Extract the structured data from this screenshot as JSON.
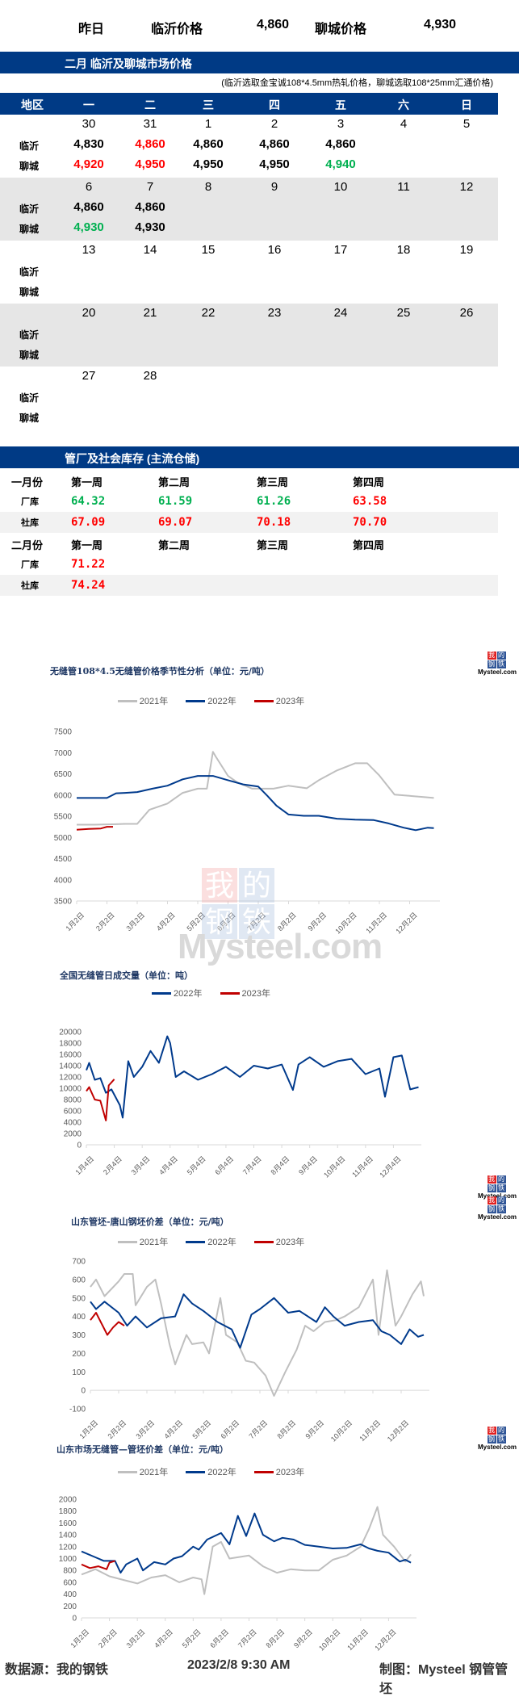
{
  "summary": {
    "label": "昨日",
    "linyi_label": "临沂价格",
    "linyi_price": "4,860",
    "liaocheng_label": "聊城价格",
    "liaocheng_price": "4,930"
  },
  "calendar": {
    "title": "二月 临沂及聊城市场价格",
    "note": "(临沂选取金宝诚108*4.5mm热轧价格，聊城选取108*25mm汇通价格)",
    "headers": [
      "地区",
      "一",
      "二",
      "三",
      "四",
      "五",
      "六",
      "日"
    ],
    "row_labels": {
      "linyi": "临沂",
      "liaocheng": "聊城"
    },
    "colors": {
      "up": "#ff0000",
      "down": "#00b050",
      "flat": "#000000"
    },
    "weeks": [
      {
        "days": [
          "30",
          "31",
          "1",
          "2",
          "3",
          "4",
          "5"
        ],
        "linyi": [
          {
            "v": "4,830",
            "c": "flat"
          },
          {
            "v": "4,860",
            "c": "up"
          },
          {
            "v": "4,860",
            "c": "flat"
          },
          {
            "v": "4,860",
            "c": "flat"
          },
          {
            "v": "4,860",
            "c": "flat"
          },
          null,
          null
        ],
        "liaocheng": [
          {
            "v": "4,920",
            "c": "up"
          },
          {
            "v": "4,950",
            "c": "up"
          },
          {
            "v": "4,950",
            "c": "flat"
          },
          {
            "v": "4,950",
            "c": "flat"
          },
          {
            "v": "4,940",
            "c": "down"
          },
          null,
          null
        ]
      },
      {
        "days": [
          "6",
          "7",
          "8",
          "9",
          "10",
          "11",
          "12"
        ],
        "linyi": [
          {
            "v": "4,860",
            "c": "flat"
          },
          {
            "v": "4,860",
            "c": "flat"
          },
          null,
          null,
          null,
          null,
          null
        ],
        "liaocheng": [
          {
            "v": "4,930",
            "c": "down"
          },
          {
            "v": "4,930",
            "c": "flat"
          },
          null,
          null,
          null,
          null,
          null
        ]
      },
      {
        "days": [
          "13",
          "14",
          "15",
          "16",
          "17",
          "18",
          "19"
        ],
        "linyi": [],
        "liaocheng": []
      },
      {
        "days": [
          "20",
          "21",
          "22",
          "23",
          "24",
          "25",
          "26"
        ],
        "linyi": [],
        "liaocheng": []
      },
      {
        "days": [
          "27",
          "28"
        ],
        "linyi": [],
        "liaocheng": []
      }
    ]
  },
  "inventory": {
    "title": "管厂及社会库存 (主流仓储)",
    "months": [
      {
        "label": "一月份",
        "weeks": [
          "第一周",
          "第二周",
          "第三周",
          "第四周"
        ],
        "factory_label": "厂库",
        "factory": [
          {
            "v": "64.32",
            "c": "down"
          },
          {
            "v": "61.59",
            "c": "down"
          },
          {
            "v": "61.26",
            "c": "down"
          },
          {
            "v": "63.58",
            "c": "up"
          }
        ],
        "social_label": "社库",
        "social": [
          {
            "v": "67.09",
            "c": "up"
          },
          {
            "v": "69.07",
            "c": "up"
          },
          {
            "v": "70.18",
            "c": "up"
          },
          {
            "v": "70.70",
            "c": "up"
          }
        ]
      },
      {
        "label": "二月份",
        "weeks": [
          "第一周",
          "第二周",
          "第三周",
          "第四周"
        ],
        "factory_label": "厂库",
        "factory": [
          {
            "v": "71.22",
            "c": "up"
          }
        ],
        "social_label": "社库",
        "social": [
          {
            "v": "74.24",
            "c": "up"
          }
        ]
      }
    ]
  },
  "logo": {
    "cells": [
      "我",
      "的",
      "钢",
      "铁"
    ],
    "text": "Mysteel.com"
  },
  "watermark": {
    "cells": [
      "我",
      "的",
      "钢",
      "铁"
    ],
    "text": "Mysteel.com"
  },
  "footer": {
    "source": "数据源：我的钢铁",
    "time": "2023/2/8 9:30 AM",
    "right": "制图：Mysteel 钢管管坯"
  },
  "chart_data": [
    {
      "type": "line",
      "title": "无缝管108*4.5无缝管价格季节性分析（单位：元/吨）",
      "xlabel": "",
      "ylabel": "元/吨",
      "ylim": [
        3500,
        7500
      ],
      "yticks": [
        3500,
        4000,
        4500,
        5000,
        5500,
        6000,
        6500,
        7000,
        7500
      ],
      "x_tick_labels": [
        "1月2日",
        "2月2日",
        "3月2日",
        "4月2日",
        "5月2日",
        "6月2日",
        "7月2日",
        "8月2日",
        "9月2日",
        "10月2日",
        "11月2日",
        "12月2日"
      ],
      "legend_position": "top",
      "series": [
        {
          "name": "2021年",
          "color": "#bfbfbf",
          "x": [
            0,
            0.6,
            1.2,
            1.6,
            2.0,
            2.4,
            3.0,
            3.5,
            4.0,
            4.3,
            4.5,
            4.6,
            5.0,
            5.3,
            5.8,
            6.5,
            7.0,
            7.6,
            8.0,
            8.6,
            9.2,
            9.6,
            10.0,
            10.5,
            11.0,
            11.5,
            11.8
          ],
          "values": [
            5300,
            5300,
            5310,
            5320,
            5320,
            5650,
            5800,
            6050,
            6150,
            6150,
            7020,
            6900,
            6450,
            6300,
            6150,
            6150,
            6220,
            6160,
            6350,
            6580,
            6750,
            6750,
            6460,
            6010,
            5980,
            5950,
            5930
          ]
        },
        {
          "name": "2022年",
          "color": "#003a8c",
          "x": [
            0,
            0.5,
            1.0,
            1.3,
            1.6,
            2.0,
            2.5,
            3.0,
            3.5,
            4.0,
            4.5,
            5.0,
            5.5,
            6.0,
            6.3,
            6.6,
            7.0,
            7.5,
            8.0,
            8.6,
            9.2,
            9.8,
            10.3,
            10.8,
            11.2,
            11.6,
            11.8
          ],
          "values": [
            5930,
            5930,
            5930,
            6040,
            6050,
            6070,
            6150,
            6220,
            6370,
            6450,
            6450,
            6350,
            6250,
            6200,
            5980,
            5750,
            5540,
            5510,
            5510,
            5440,
            5420,
            5410,
            5330,
            5230,
            5170,
            5230,
            5220
          ]
        },
        {
          "name": "2023年",
          "color": "#c00000",
          "x": [
            0,
            0.4,
            0.8,
            1.0,
            1.2
          ],
          "values": [
            5180,
            5200,
            5210,
            5250,
            5250
          ]
        }
      ]
    },
    {
      "type": "line",
      "title": "全国无缝管日成交量（单位：吨）",
      "xlabel": "",
      "ylabel": "吨",
      "ylim": [
        0,
        20000
      ],
      "yticks": [
        0,
        2000,
        4000,
        6000,
        8000,
        10000,
        12000,
        14000,
        16000,
        18000,
        20000
      ],
      "x_tick_labels": [
        "1月4日",
        "2月4日",
        "3月4日",
        "4月4日",
        "5月4日",
        "6月4日",
        "7月4日",
        "8月4日",
        "9月4日",
        "10月4日",
        "11月4日",
        "12月4日"
      ],
      "legend_position": "top",
      "series": [
        {
          "name": "2022年",
          "color": "#003a8c",
          "x": [
            0,
            0.1,
            0.3,
            0.5,
            0.7,
            0.9,
            1.2,
            1.3,
            1.5,
            1.7,
            2.0,
            2.3,
            2.6,
            2.9,
            3.0,
            3.2,
            3.5,
            4.0,
            4.5,
            5.0,
            5.5,
            6.0,
            6.5,
            7.0,
            7.4,
            7.6,
            8.0,
            8.5,
            9.0,
            9.5,
            10.0,
            10.5,
            10.7,
            11.0,
            11.3,
            11.6,
            11.9
          ],
          "values": [
            13200,
            14500,
            11500,
            11800,
            9200,
            9800,
            7000,
            4800,
            14800,
            12000,
            13800,
            16600,
            14500,
            19200,
            18000,
            12000,
            13000,
            11500,
            12500,
            13800,
            12000,
            14000,
            13500,
            14200,
            9700,
            14200,
            15500,
            13800,
            14800,
            15200,
            12500,
            13500,
            8500,
            15500,
            15800,
            9800,
            10200
          ]
        },
        {
          "name": "2023年",
          "color": "#c00000",
          "x": [
            0,
            0.1,
            0.3,
            0.5,
            0.7,
            0.8,
            1.0
          ],
          "values": [
            9500,
            10200,
            8000,
            7800,
            4300,
            10500,
            11600
          ]
        }
      ]
    },
    {
      "type": "line",
      "title": "山东管坯-唐山钢坯价差（单位：元/吨）",
      "xlabel": "",
      "ylabel": "元/吨",
      "ylim": [
        -100,
        700
      ],
      "yticks": [
        -100,
        0,
        100,
        200,
        300,
        400,
        500,
        600,
        700
      ],
      "x_tick_labels": [
        "1月2日",
        "2月2日",
        "3月2日",
        "4月2日",
        "5月2日",
        "6月2日",
        "7月2日",
        "8月2日",
        "9月2日",
        "10月2日",
        "11月2日",
        "12月2日"
      ],
      "legend_position": "top",
      "series": [
        {
          "name": "2021年",
          "color": "#bfbfbf",
          "x": [
            0,
            0.2,
            0.5,
            1.0,
            1.2,
            1.5,
            1.6,
            2.0,
            2.3,
            2.5,
            2.8,
            3.0,
            3.1,
            3.4,
            3.6,
            4.0,
            4.2,
            4.6,
            4.8,
            5.2,
            5.5,
            5.8,
            6.2,
            6.5,
            6.9,
            7.3,
            7.6,
            7.9,
            8.3,
            8.7,
            9.0,
            9.5,
            10.0,
            10.2,
            10.5,
            10.8,
            11.0,
            11.4,
            11.7,
            11.8
          ],
          "values": [
            560,
            600,
            510,
            590,
            630,
            630,
            460,
            560,
            600,
            470,
            250,
            140,
            180,
            300,
            250,
            260,
            200,
            500,
            300,
            260,
            160,
            150,
            80,
            -30,
            100,
            220,
            350,
            320,
            370,
            380,
            400,
            450,
            600,
            300,
            650,
            350,
            400,
            520,
            590,
            510
          ]
        },
        {
          "name": "2022年",
          "color": "#003a8c",
          "x": [
            0,
            0.2,
            0.5,
            1.0,
            1.3,
            1.6,
            2.0,
            2.5,
            3.0,
            3.3,
            3.6,
            4.0,
            4.5,
            5.0,
            5.3,
            5.7,
            6.0,
            6.5,
            7.0,
            7.4,
            8.0,
            8.3,
            8.6,
            9.0,
            9.5,
            10.0,
            10.3,
            10.6,
            11.0,
            11.3,
            11.6,
            11.8
          ],
          "values": [
            480,
            440,
            480,
            420,
            350,
            400,
            340,
            390,
            400,
            520,
            470,
            430,
            370,
            330,
            230,
            410,
            440,
            500,
            420,
            430,
            370,
            450,
            400,
            350,
            370,
            380,
            320,
            300,
            250,
            330,
            290,
            300
          ]
        },
        {
          "name": "2023年",
          "color": "#c00000",
          "x": [
            0,
            0.2,
            0.4,
            0.6,
            0.8,
            1.0,
            1.2
          ],
          "values": [
            380,
            420,
            360,
            300,
            340,
            370,
            350
          ]
        }
      ]
    },
    {
      "type": "line",
      "title": "山东市场无缝管—管坯价差（单位：元/吨）",
      "xlabel": "",
      "ylabel": "元/吨",
      "ylim": [
        0,
        2000
      ],
      "yticks": [
        0,
        200,
        400,
        600,
        800,
        1000,
        1200,
        1400,
        1600,
        1800,
        2000
      ],
      "x_tick_labels": [
        "1月2日",
        "2月2日",
        "3月2日",
        "4月2日",
        "5月2日",
        "6月2日",
        "7月2日",
        "8月2日",
        "9月2日",
        "10月2日",
        "11月2日",
        "12月2日"
      ],
      "legend_position": "top",
      "series": [
        {
          "name": "2021年",
          "color": "#bfbfbf",
          "x": [
            0,
            0.5,
            1.0,
            1.5,
            2.0,
            2.5,
            3.0,
            3.5,
            4.0,
            4.3,
            4.4,
            4.7,
            5.0,
            5.3,
            6.0,
            6.5,
            7.0,
            7.5,
            8.0,
            8.5,
            9.0,
            9.5,
            10.0,
            10.3,
            10.6,
            10.8,
            11.2,
            11.6,
            11.8
          ],
          "values": [
            730,
            820,
            700,
            640,
            580,
            680,
            720,
            600,
            680,
            650,
            400,
            1200,
            1280,
            1000,
            1050,
            870,
            760,
            820,
            800,
            800,
            980,
            1050,
            1200,
            1500,
            1870,
            1400,
            1200,
            950,
            1070
          ]
        },
        {
          "name": "2022年",
          "color": "#003a8c",
          "x": [
            0,
            0.5,
            0.8,
            1.2,
            1.4,
            1.6,
            2.0,
            2.2,
            2.6,
            3.0,
            3.3,
            3.6,
            4.0,
            4.2,
            4.5,
            5.0,
            5.3,
            5.6,
            5.9,
            6.2,
            6.5,
            6.9,
            7.2,
            7.6,
            8.0,
            8.5,
            9.0,
            9.5,
            10.0,
            10.3,
            10.6,
            11.0,
            11.4,
            11.6,
            11.8
          ],
          "values": [
            1120,
            1020,
            960,
            960,
            760,
            900,
            1000,
            800,
            940,
            900,
            1000,
            1040,
            1200,
            1150,
            1320,
            1430,
            1240,
            1720,
            1380,
            1760,
            1400,
            1290,
            1350,
            1320,
            1230,
            1200,
            1170,
            1180,
            1240,
            1170,
            1130,
            1100,
            950,
            980,
            930
          ]
        },
        {
          "name": "2023年",
          "color": "#c00000",
          "x": [
            0,
            0.3,
            0.6,
            0.9,
            1.0,
            1.2
          ],
          "values": [
            900,
            840,
            870,
            820,
            930,
            960
          ]
        }
      ]
    }
  ]
}
